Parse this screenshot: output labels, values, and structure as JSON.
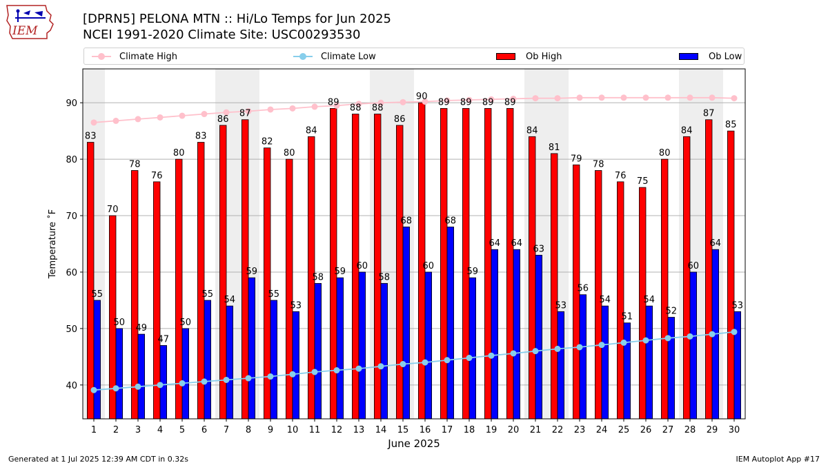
{
  "header": {
    "title_line1": "[DPRN5] PELONA MTN :: Hi/Lo Temps for Jun 2025",
    "title_line2": "NCEI 1991-2020 Climate Site: USC00293530"
  },
  "logo": {
    "text": "IEM"
  },
  "footer": {
    "left": "Generated at 1 Jul 2025 12:39 AM CDT in 0.32s",
    "right": "IEM Autoplot App #17"
  },
  "colors": {
    "ob_high": "#ff0000",
    "ob_low": "#0000ff",
    "climate_high": "#ffc0cb",
    "climate_low": "#87ceeb",
    "weekend_shade": "#eeeeee",
    "grid": "#b0b0b0"
  },
  "chart_data": {
    "type": "bar",
    "title": "[DPRN5] PELONA MTN :: Hi/Lo Temps for Jun 2025",
    "subtitle": "NCEI 1991-2020 Climate Site: USC00293530",
    "xlabel": "June 2025",
    "ylabel": "Temperature ˚F",
    "ylim": [
      34,
      96
    ],
    "yticks": [
      40,
      50,
      60,
      70,
      80,
      90
    ],
    "grid": "horizontal",
    "legend_position": "top",
    "categories": [
      1,
      2,
      3,
      4,
      5,
      6,
      7,
      8,
      9,
      10,
      11,
      12,
      13,
      14,
      15,
      16,
      17,
      18,
      19,
      20,
      21,
      22,
      23,
      24,
      25,
      26,
      27,
      28,
      29,
      30
    ],
    "shaded_days": [
      1,
      7,
      8,
      14,
      15,
      21,
      22,
      28,
      29
    ],
    "series": [
      {
        "name": "Climate High",
        "type": "line",
        "values": [
          86.5,
          86.8,
          87.1,
          87.4,
          87.7,
          88.0,
          88.3,
          88.5,
          88.8,
          89.0,
          89.3,
          89.5,
          89.8,
          90.0,
          90.1,
          90.2,
          90.4,
          90.5,
          90.6,
          90.7,
          90.8,
          90.8,
          90.9,
          90.9,
          90.9,
          90.9,
          90.9,
          90.9,
          90.9,
          90.8
        ]
      },
      {
        "name": "Climate Low",
        "type": "line",
        "values": [
          39.1,
          39.4,
          39.7,
          40.0,
          40.3,
          40.6,
          40.9,
          41.2,
          41.5,
          41.9,
          42.3,
          42.6,
          42.9,
          43.3,
          43.7,
          44.0,
          44.4,
          44.8,
          45.2,
          45.6,
          46.0,
          46.4,
          46.7,
          47.1,
          47.5,
          47.9,
          48.3,
          48.6,
          49.0,
          49.4
        ]
      },
      {
        "name": "Ob High",
        "type": "bar",
        "values": [
          83,
          70,
          78,
          76,
          80,
          83,
          86,
          87,
          82,
          80,
          84,
          89,
          88,
          88,
          86,
          90,
          89,
          89,
          89,
          89,
          84,
          81,
          79,
          78,
          76,
          75,
          80,
          84,
          87,
          85
        ]
      },
      {
        "name": "Ob Low",
        "type": "bar",
        "values": [
          55,
          50,
          49,
          47,
          50,
          55,
          54,
          59,
          55,
          53,
          58,
          59,
          60,
          58,
          68,
          60,
          68,
          59,
          64,
          64,
          63,
          53,
          56,
          54,
          51,
          54,
          52,
          60,
          64,
          53
        ]
      }
    ]
  }
}
